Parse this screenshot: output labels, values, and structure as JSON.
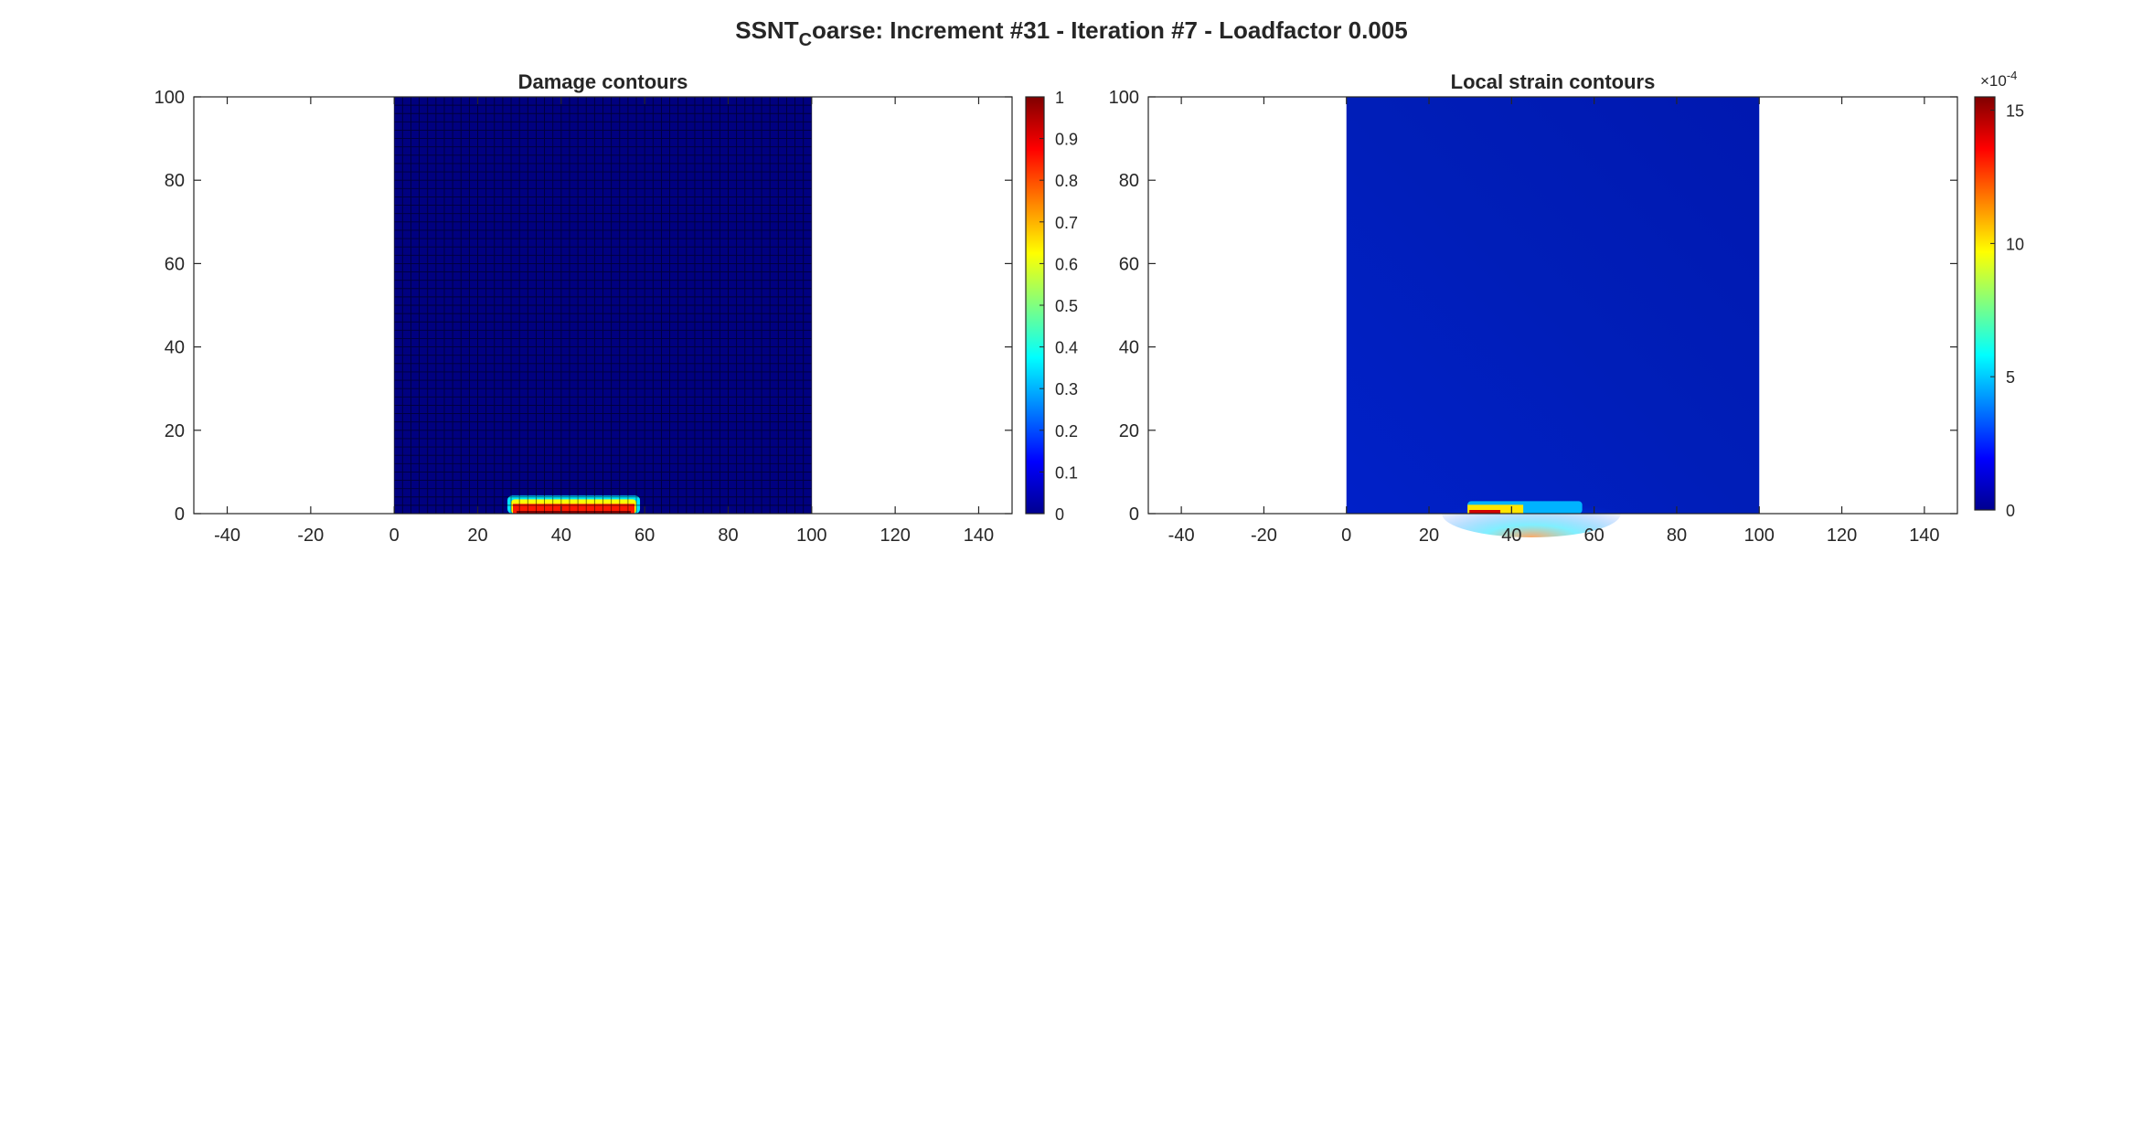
{
  "figure": {
    "title_prefix": "SSNT",
    "title_subscript": "C",
    "title_suffix": "oarse: Increment #31 - Iteration #7 - Loadfactor 0.005"
  },
  "chart_data": [
    {
      "type": "heatmap",
      "title": "Damage contours",
      "xlabel": "",
      "ylabel": "",
      "xlim": [
        -48,
        148
      ],
      "ylim": [
        0,
        100
      ],
      "xticks": [
        -40,
        -20,
        0,
        20,
        40,
        60,
        80,
        100,
        120,
        140
      ],
      "yticks": [
        0,
        20,
        40,
        60,
        80,
        100
      ],
      "domain_x": [
        0,
        100
      ],
      "domain_y": [
        0,
        100
      ],
      "mesh_grid": true,
      "mesh_divisions": 50,
      "background_value": 0,
      "hotspot": {
        "x": [
          28,
          58
        ],
        "y": [
          0,
          3
        ],
        "peak_value": 1
      },
      "colorbar": {
        "min": 0,
        "max": 1,
        "ticks": [
          0,
          0.1,
          0.2,
          0.3,
          0.4,
          0.5,
          0.6,
          0.7,
          0.8,
          0.9,
          1
        ],
        "tick_labels": [
          "0",
          "0.1",
          "0.2",
          "0.3",
          "0.4",
          "0.5",
          "0.6",
          "0.7",
          "0.8",
          "0.9",
          "1"
        ],
        "multiplier": "",
        "colormap": "jet"
      }
    },
    {
      "type": "heatmap",
      "title": "Local strain contours",
      "xlabel": "",
      "ylabel": "",
      "xlim": [
        -48,
        148
      ],
      "ylim": [
        0,
        100
      ],
      "xticks": [
        -40,
        -20,
        0,
        20,
        40,
        60,
        80,
        100,
        120,
        140
      ],
      "yticks": [
        0,
        20,
        40,
        60,
        80,
        100
      ],
      "domain_x": [
        0,
        100
      ],
      "domain_y": [
        0,
        100
      ],
      "mesh_grid": false,
      "background_value": 0.3,
      "hotspot": {
        "x": [
          28,
          58
        ],
        "y": [
          0,
          3
        ],
        "peak_value": 15.5
      },
      "colorbar": {
        "min": 0,
        "max": 15.5,
        "ticks": [
          0,
          5,
          10,
          15
        ],
        "tick_labels": [
          "0",
          "5",
          "10",
          "15"
        ],
        "multiplier": "×10",
        "multiplier_exponent": "-4",
        "colormap": "jet"
      }
    }
  ]
}
